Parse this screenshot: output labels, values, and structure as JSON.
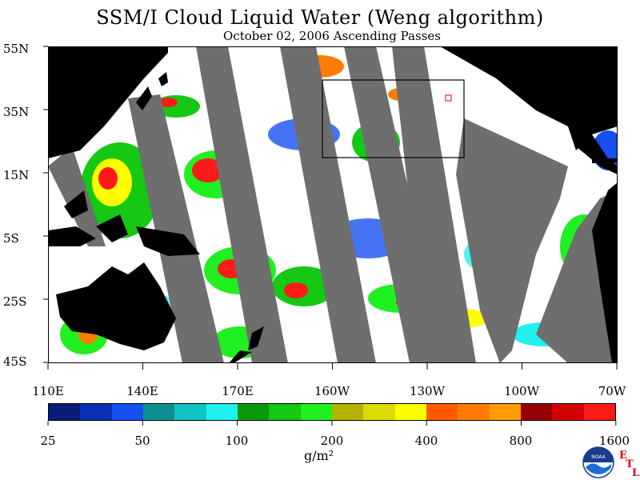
{
  "title": "SSM/I Cloud Liquid Water (Weng algorithm)",
  "subtitle": "October 02, 2006  Ascending Passes",
  "lat_labels": [
    "55N",
    "35N",
    "15N",
    "5S",
    "25S",
    "45S"
  ],
  "lon_labels": [
    "110E",
    "140E",
    "170E",
    "160W",
    "130W",
    "100W",
    "70W"
  ],
  "colorbar": {
    "colors": [
      "#0a1c7c",
      "#0c30b4",
      "#1650f0",
      "#0f9090",
      "#10c4c4",
      "#20f0f0",
      "#0a9a0a",
      "#14c814",
      "#20f020",
      "#b4b400",
      "#dcdc00",
      "#ffff00",
      "#ff5a00",
      "#ff7c00",
      "#ff9c00",
      "#960000",
      "#d20000",
      "#ff1a1a"
    ],
    "tick_labels": [
      "25",
      "50",
      "100",
      "200",
      "400",
      "800",
      "1600"
    ],
    "units": "g/m²"
  },
  "map_colors": {
    "land": "#000000",
    "no_data": "#6e6e6e",
    "clear": "#ffffff"
  },
  "logo": {
    "text": "NOAA",
    "etl": [
      "E",
      "T",
      "L"
    ]
  }
}
